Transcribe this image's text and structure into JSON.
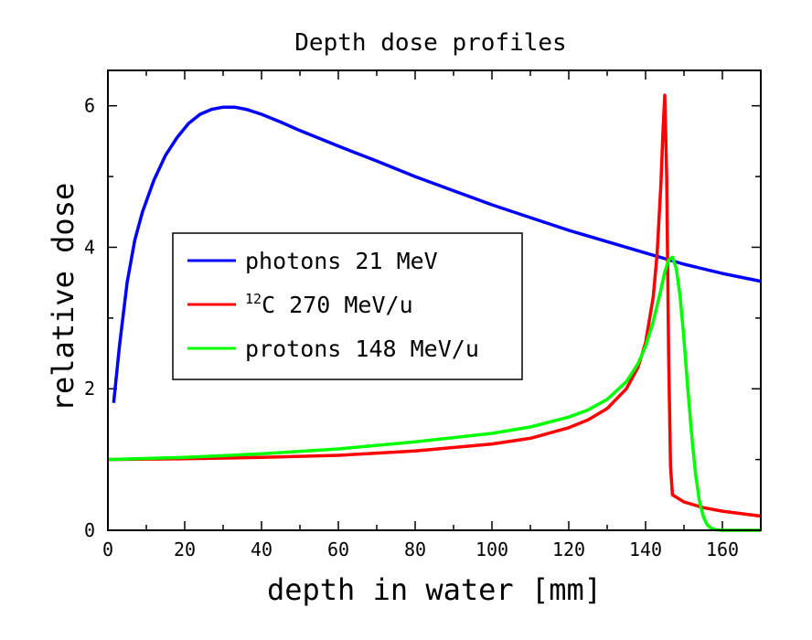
{
  "chart_data": {
    "type": "line",
    "title": "Depth dose profiles",
    "xlabel": "depth in water [mm]",
    "ylabel": "relative dose",
    "xlim": [
      0,
      170
    ],
    "ylim": [
      0,
      6.5
    ],
    "x_ticks": [
      0,
      20,
      40,
      60,
      80,
      100,
      120,
      140,
      160
    ],
    "y_ticks": [
      0,
      2,
      4,
      6
    ],
    "legend_position": "center-left",
    "series": [
      {
        "name": "photons 21 MeV",
        "color": "#0000ff",
        "x": [
          1.5,
          3,
          5,
          7,
          9,
          12,
          15,
          18,
          21,
          24,
          27,
          30,
          33,
          36,
          40,
          45,
          50,
          60,
          70,
          80,
          90,
          100,
          110,
          120,
          130,
          140,
          150,
          160,
          170
        ],
        "y": [
          1.8,
          2.6,
          3.5,
          4.1,
          4.5,
          4.95,
          5.3,
          5.55,
          5.75,
          5.88,
          5.95,
          5.98,
          5.98,
          5.95,
          5.88,
          5.77,
          5.65,
          5.43,
          5.22,
          5.0,
          4.8,
          4.6,
          4.42,
          4.24,
          4.08,
          3.92,
          3.76,
          3.63,
          3.52
        ]
      },
      {
        "name": "12C 270 MeV/u",
        "label_superscript": "12",
        "label_text": "C 270 MeV/u",
        "color": "#ff0000",
        "x": [
          0,
          20,
          40,
          60,
          80,
          100,
          110,
          120,
          125,
          130,
          135,
          138,
          140,
          142,
          143,
          144,
          144.5,
          145,
          145.5,
          146,
          146.5,
          147,
          150,
          155,
          160,
          170
        ],
        "y": [
          1.0,
          1.01,
          1.03,
          1.06,
          1.12,
          1.22,
          1.3,
          1.45,
          1.56,
          1.72,
          2.0,
          2.3,
          2.65,
          3.3,
          3.9,
          4.9,
          5.6,
          6.15,
          5.0,
          2.5,
          0.9,
          0.5,
          0.4,
          0.32,
          0.27,
          0.2
        ]
      },
      {
        "name": "protons 148 MeV/u",
        "color": "#00ff00",
        "x": [
          0,
          20,
          40,
          60,
          80,
          100,
          110,
          120,
          125,
          130,
          135,
          138,
          140,
          142,
          144,
          145,
          146,
          147,
          148,
          149,
          150,
          151,
          152,
          153,
          154,
          155,
          156,
          157,
          158,
          160,
          170
        ],
        "y": [
          1.0,
          1.03,
          1.08,
          1.15,
          1.25,
          1.37,
          1.46,
          1.6,
          1.7,
          1.85,
          2.1,
          2.35,
          2.6,
          2.95,
          3.4,
          3.65,
          3.82,
          3.86,
          3.7,
          3.3,
          2.7,
          2.0,
          1.35,
          0.8,
          0.42,
          0.2,
          0.08,
          0.03,
          0.01,
          0.0,
          0.0
        ]
      }
    ]
  }
}
